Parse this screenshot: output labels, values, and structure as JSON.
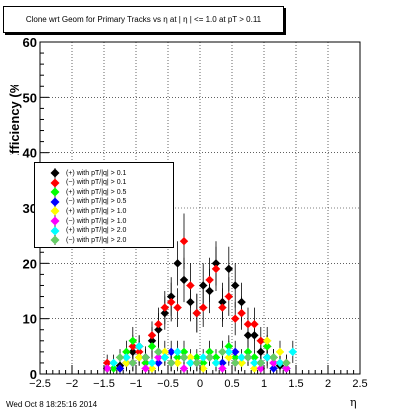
{
  "header": {
    "title": "Clone wrt Geom for Primary Tracks vs  η at | η | <= 1.0 at pT > 0.11"
  },
  "footer": {
    "timestamp": "Wed Oct  8 18:25:16 2014"
  },
  "chart_data": {
    "type": "scatter",
    "title": "Clone wrt Geom for Primary Tracks vs  η at | η | <= 1.0 at pT > 0.11",
    "xlabel": "η",
    "ylabel": "Efficiency (%)",
    "xlim": [
      -2.5,
      2.5
    ],
    "ylim": [
      0,
      60
    ],
    "xticks": [
      "−2.5",
      "−2",
      "−1.5",
      "−1",
      "−0.5",
      "0",
      "0.5",
      "1",
      "1.5",
      "2",
      "2.5"
    ],
    "yticks": [
      "0",
      "10",
      "20",
      "30",
      "40",
      "50",
      "60"
    ],
    "grid": true,
    "legend_position": "left-middle",
    "series": [
      {
        "name": "(+) with pT/|q| > 0.1",
        "color": "#000000",
        "x": [
          -1.45,
          -1.25,
          -1.15,
          -1.05,
          -0.95,
          -0.85,
          -0.75,
          -0.65,
          -0.55,
          -0.45,
          -0.35,
          -0.25,
          -0.15,
          -0.05,
          0.05,
          0.15,
          0.25,
          0.35,
          0.45,
          0.55,
          0.65,
          0.75,
          0.85,
          0.95,
          1.05,
          1.15,
          1.25,
          1.35
        ],
        "y": [
          1,
          1.5,
          2,
          4,
          5,
          3,
          6,
          8,
          11,
          14,
          20,
          17,
          13,
          11,
          16,
          15,
          20,
          13,
          19,
          16,
          13,
          7,
          7,
          4,
          3,
          2,
          1.5,
          1
        ],
        "err": [
          1,
          1.5,
          1.5,
          2,
          2,
          2,
          2.5,
          3,
          3,
          3.5,
          4,
          4,
          3.5,
          3.5,
          4,
          4,
          4,
          3.5,
          4,
          4,
          3.5,
          2.5,
          2.5,
          2,
          2,
          1.5,
          1.5,
          1
        ]
      },
      {
        "name": "(−) with pT/|q| > 0.1",
        "color": "#ff0000",
        "x": [
          -1.45,
          -1.25,
          -1.15,
          -1.05,
          -0.95,
          -0.85,
          -0.75,
          -0.65,
          -0.55,
          -0.45,
          -0.35,
          -0.25,
          -0.15,
          -0.05,
          0.05,
          0.15,
          0.25,
          0.35,
          0.45,
          0.55,
          0.65,
          0.75,
          0.85,
          0.95,
          1.05,
          1.15,
          1.25,
          1.35
        ],
        "y": [
          2,
          1,
          3,
          5,
          4,
          2,
          7,
          9,
          12,
          13,
          12,
          24,
          16,
          11,
          12,
          17,
          19,
          12,
          14,
          10,
          11,
          9,
          9,
          6,
          5,
          3,
          2,
          2
        ],
        "err": [
          1.5,
          1,
          1.5,
          2,
          2,
          1.5,
          2.5,
          3,
          3,
          3.5,
          3.5,
          5,
          4,
          3.5,
          3.5,
          4,
          4,
          3.5,
          3.5,
          3,
          3,
          3,
          3,
          2.5,
          2,
          1.5,
          1.5,
          1.5
        ]
      },
      {
        "name": "(+) with pT/|q| > 0.5",
        "color": "#00ff00",
        "x": [
          -1.35,
          -1.15,
          -1.05,
          -0.95,
          -0.85,
          -0.75,
          -0.65,
          -0.55,
          -0.45,
          -0.35,
          -0.25,
          -0.15,
          -0.05,
          0.05,
          0.15,
          0.25,
          0.35,
          0.45,
          0.55,
          0.65,
          0.75,
          0.85,
          0.95,
          1.05,
          1.15,
          1.25
        ],
        "y": [
          1,
          4,
          6,
          3,
          2,
          5,
          4,
          3,
          2,
          3,
          4,
          2,
          3,
          2,
          4,
          3,
          2,
          5,
          3,
          2,
          4,
          3,
          2,
          5,
          3,
          2
        ],
        "err": [
          1,
          2,
          2.5,
          1.5,
          1.5,
          2,
          2,
          1.5,
          1.5,
          1.5,
          2,
          1.5,
          1.5,
          1.5,
          2,
          1.5,
          1.5,
          2,
          1.5,
          1.5,
          2,
          1.5,
          1.5,
          2,
          1.5,
          1.5
        ]
      },
      {
        "name": "(−) with pT/|q| > 0.5",
        "color": "#0000ff",
        "x": [
          -1.25,
          -1.05,
          -0.85,
          -0.65,
          -0.45,
          -0.25,
          -0.05,
          0.15,
          0.35,
          0.55,
          0.75,
          0.95,
          1.15,
          1.35
        ],
        "y": [
          1,
          2,
          3,
          2,
          4,
          3,
          2,
          3,
          2,
          4,
          3,
          2,
          1,
          1
        ],
        "err": [
          1,
          1.5,
          1.5,
          1.5,
          2,
          1.5,
          1.5,
          1.5,
          1.5,
          2,
          1.5,
          1.5,
          1,
          1
        ]
      },
      {
        "name": "(+) with pT/|q| > 1.0",
        "color": "#ffff00",
        "x": [
          -1.15,
          -0.95,
          -0.75,
          -0.55,
          -0.35,
          -0.15,
          0.05,
          0.25,
          0.45,
          0.65,
          0.85,
          1.05,
          1.25
        ],
        "y": [
          2,
          3,
          1,
          4,
          2,
          3,
          1,
          2,
          3,
          2,
          1,
          6,
          4
        ],
        "err": [
          1.5,
          1.5,
          1,
          2,
          1.5,
          1.5,
          1,
          1.5,
          1.5,
          1.5,
          1,
          2.5,
          2
        ]
      },
      {
        "name": "(−) with pT/|q| > 1.0",
        "color": "#ff00ff",
        "x": [
          -1.45,
          -1.05,
          -0.85,
          -0.65,
          -0.45,
          -0.25,
          -0.05,
          0.15,
          0.35,
          0.55,
          0.75,
          0.95,
          1.15,
          1.35
        ],
        "y": [
          1,
          2,
          1,
          3,
          2,
          1,
          2,
          3,
          1,
          2,
          3,
          1,
          2,
          1
        ],
        "err": [
          1,
          1.5,
          1,
          1.5,
          1.5,
          1,
          1.5,
          1.5,
          1,
          1.5,
          1.5,
          1,
          1.5,
          1
        ]
      },
      {
        "name": "(+) with pT/|q| > 2.0",
        "color": "#00ffff",
        "x": [
          -1.35,
          -1.15,
          -0.95,
          -0.75,
          -0.55,
          -0.35,
          -0.15,
          0.05,
          0.25,
          0.45,
          0.65,
          0.85,
          1.05,
          1.25,
          1.45
        ],
        "y": [
          2,
          3,
          5,
          2,
          3,
          4,
          2,
          3,
          2,
          4,
          3,
          2,
          3,
          2,
          4
        ],
        "err": [
          1.5,
          1.5,
          2,
          1.5,
          1.5,
          2,
          1.5,
          1.5,
          1.5,
          2,
          1.5,
          1.5,
          1.5,
          1.5,
          2
        ]
      },
      {
        "name": "(−) with pT/|q| > 2.0",
        "color": "#66cc66",
        "x": [
          -1.25,
          -1.05,
          -0.85,
          -0.65,
          -0.45,
          -0.25,
          -0.05,
          0.15,
          0.35,
          0.55,
          0.75,
          0.95,
          1.15,
          1.35
        ],
        "y": [
          3,
          2,
          3,
          4,
          2,
          3,
          2,
          3,
          4,
          2,
          3,
          2,
          3,
          2
        ],
        "err": [
          1.5,
          1.5,
          1.5,
          2,
          1.5,
          1.5,
          1.5,
          1.5,
          2,
          1.5,
          1.5,
          1.5,
          1.5,
          1.5
        ]
      }
    ]
  }
}
